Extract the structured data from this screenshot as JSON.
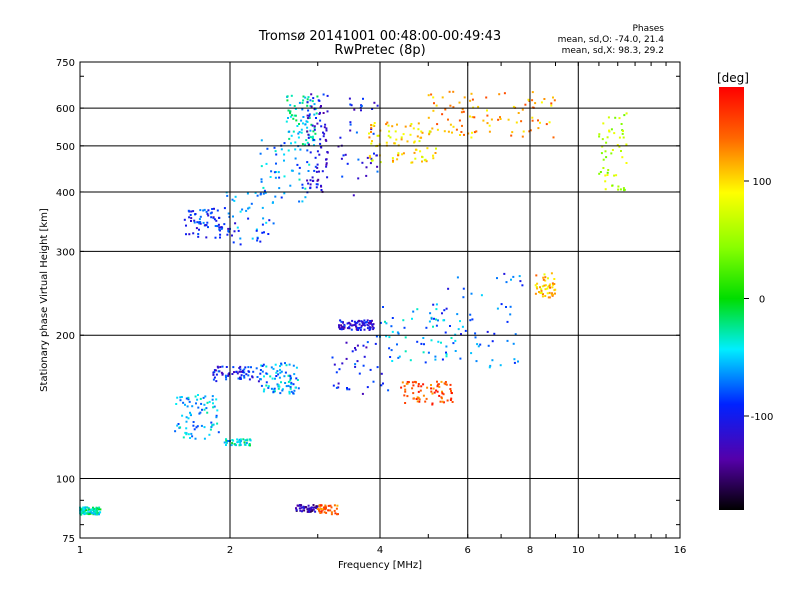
{
  "chart_data": {
    "type": "scatter",
    "title": "Tromsø 20141001 00:48:00-00:49:43",
    "subtitle": "RwPretec (8p)",
    "xlabel": "Frequency [MHz]",
    "ylabel": "Stationary phase Virtual Height [km]",
    "x_scale": "log",
    "y_scale": "log",
    "xlim": [
      1,
      16
    ],
    "ylim": [
      75,
      750
    ],
    "x_ticks": [
      1,
      2,
      4,
      6,
      8,
      10,
      16
    ],
    "x_tick_labels": [
      "1",
      "2",
      "4",
      "6",
      "8",
      "10",
      "16"
    ],
    "y_ticks": [
      75,
      100,
      200,
      300,
      400,
      500,
      600,
      750
    ],
    "y_tick_labels": [
      "75",
      "100",
      "200",
      "300",
      "400",
      "500",
      "600",
      "750"
    ],
    "grid": true,
    "stats": {
      "heading": "Phases",
      "o_line": "mean, sd,O: -74.0, 21.4",
      "x_line": "mean, sd,X:  98.3, 29.2"
    },
    "colorbar": {
      "label": "[deg]",
      "ticks": [
        100,
        0,
        -100
      ],
      "tick_labels": [
        "100",
        "0",
        "-100"
      ],
      "range": [
        -180,
        180
      ]
    },
    "clusters": [
      {
        "xrange": [
          1.62,
          2.05
        ],
        "yrange": [
          320,
          370
        ],
        "phase": -95
      },
      {
        "xrange": [
          1.95,
          2.45
        ],
        "yrange": [
          310,
          400
        ],
        "phase": -70
      },
      {
        "xrange": [
          2.3,
          2.9
        ],
        "yrange": [
          380,
          520
        ],
        "phase": -60
      },
      {
        "xrange": [
          2.6,
          3.0
        ],
        "yrange": [
          500,
          640
        ],
        "phase": -40
      },
      {
        "xrange": [
          2.85,
          3.15
        ],
        "yrange": [
          400,
          650
        ],
        "phase": -110
      },
      {
        "xrange": [
          3.3,
          4.0
        ],
        "yrange": [
          380,
          640
        ],
        "phase": -100
      },
      {
        "xrange": [
          3.8,
          5.2
        ],
        "yrange": [
          460,
          560
        ],
        "phase": 100
      },
      {
        "xrange": [
          5.0,
          9.0
        ],
        "yrange": [
          520,
          650
        ],
        "phase": 120
      },
      {
        "xrange": [
          3.3,
          3.9
        ],
        "yrange": [
          205,
          215
        ],
        "phase": -110
      },
      {
        "xrange": [
          3.2,
          4.2
        ],
        "yrange": [
          150,
          200
        ],
        "phase": -100
      },
      {
        "xrange": [
          4.0,
          5.8
        ],
        "yrange": [
          175,
          230
        ],
        "phase": -60
      },
      {
        "xrange": [
          4.4,
          5.6
        ],
        "yrange": [
          143,
          160
        ],
        "phase": 145
      },
      {
        "xrange": [
          5.0,
          7.8
        ],
        "yrange": [
          170,
          270
        ],
        "phase": -80
      },
      {
        "xrange": [
          1.85,
          2.3
        ],
        "yrange": [
          160,
          172
        ],
        "phase": -100
      },
      {
        "xrange": [
          2.3,
          2.75
        ],
        "yrange": [
          150,
          175
        ],
        "phase": -60
      },
      {
        "xrange": [
          1.55,
          1.9
        ],
        "yrange": [
          120,
          150
        ],
        "phase": -55
      },
      {
        "xrange": [
          1.95,
          2.2
        ],
        "yrange": [
          117,
          121
        ],
        "phase": -40
      },
      {
        "xrange": [
          2.7,
          3.0
        ],
        "yrange": [
          85,
          88
        ],
        "phase": -130
      },
      {
        "xrange": [
          3.0,
          3.3
        ],
        "yrange": [
          84,
          88
        ],
        "phase": 140
      },
      {
        "xrange": [
          1.0,
          1.1
        ],
        "yrange": [
          84,
          87
        ],
        "phase": -30
      },
      {
        "xrange": [
          11.0,
          12.5
        ],
        "yrange": [
          400,
          600
        ],
        "phase": 60
      },
      {
        "xrange": [
          8.2,
          9.0
        ],
        "yrange": [
          240,
          270
        ],
        "phase": 110
      }
    ]
  }
}
